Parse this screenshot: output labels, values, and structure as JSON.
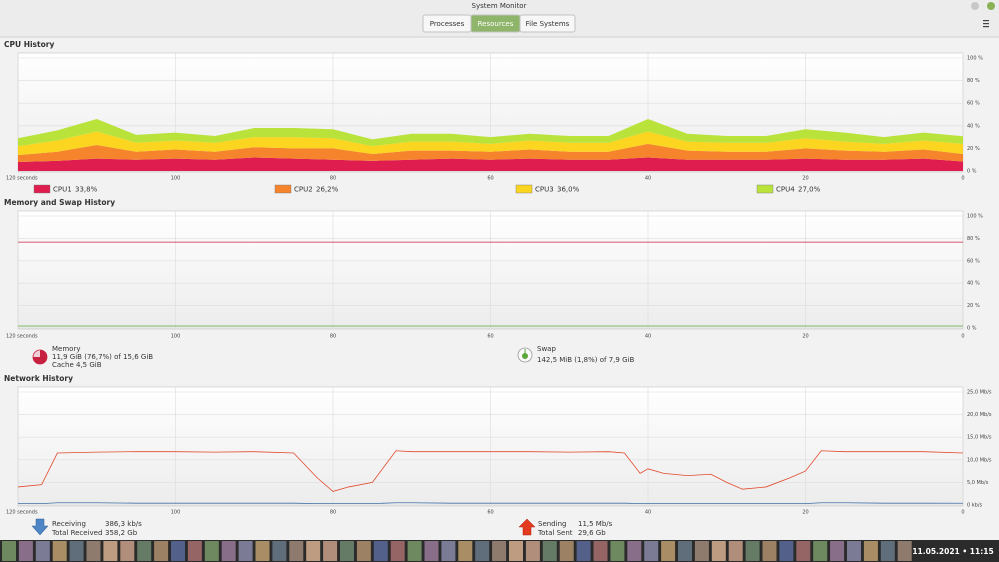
{
  "window": {
    "title": "System Monitor",
    "tabs": [
      "Processes",
      "Resources",
      "File Systems"
    ],
    "active_tab": 1
  },
  "cpu_history": {
    "heading": "CPU History",
    "type": "area",
    "stacked": true,
    "x": [
      120,
      115,
      110,
      105,
      100,
      95,
      90,
      85,
      80,
      75,
      70,
      65,
      60,
      55,
      50,
      45,
      40,
      35,
      30,
      25,
      20,
      15,
      10,
      5,
      0
    ],
    "xlim": [
      120,
      0
    ],
    "xticks": [
      {
        "value": 120,
        "label": "120 seconds"
      },
      100,
      80,
      60,
      40,
      20,
      0
    ],
    "ylim": [
      0,
      100
    ],
    "yticks": [
      {
        "value": 0,
        "label": "0 %"
      },
      {
        "value": 20,
        "label": "20 %"
      },
      {
        "value": 40,
        "label": "40 %"
      },
      {
        "value": 60,
        "label": "60 %"
      },
      {
        "value": 80,
        "label": "80 %"
      },
      {
        "value": 100,
        "label": "100 %"
      }
    ],
    "series": [
      {
        "name": "CPU1",
        "color": "#df1d4e",
        "legend_value": "33,8%",
        "values": [
          8,
          9,
          11,
          10,
          11,
          10,
          12,
          11,
          10,
          9,
          10,
          11,
          10,
          11,
          10,
          10,
          12,
          10,
          10,
          10,
          11,
          10,
          10,
          11,
          8.45
        ]
      },
      {
        "name": "CPU2",
        "color": "#f5842c",
        "legend_value": "26,2%",
        "values": [
          6,
          8,
          12,
          7,
          8,
          7,
          9,
          9,
          10,
          6,
          8,
          7,
          7,
          8,
          7,
          7,
          12,
          8,
          7,
          7,
          9,
          8,
          7,
          8,
          6.55
        ]
      },
      {
        "name": "CPU3",
        "color": "#fbd51f",
        "legend_value": "36,0%",
        "values": [
          8,
          10,
          12,
          8,
          8,
          8,
          9,
          10,
          9,
          7,
          8,
          8,
          7,
          8,
          8,
          8,
          11,
          8,
          8,
          8,
          9,
          8,
          7,
          8,
          9
        ]
      },
      {
        "name": "CPU4",
        "color": "#b9e33b",
        "legend_value": "27,0%",
        "values": [
          7,
          9,
          11,
          7,
          7,
          6,
          8,
          8,
          8,
          6,
          7,
          7,
          6,
          6,
          6,
          6,
          11,
          7,
          6,
          6,
          8,
          8,
          6,
          7,
          6.75
        ]
      }
    ]
  },
  "memory_history": {
    "heading": "Memory and Swap History",
    "type": "line",
    "x": [
      120,
      0
    ],
    "xlim": [
      120,
      0
    ],
    "xticks": [
      {
        "value": 120,
        "label": "120 seconds"
      },
      100,
      80,
      60,
      40,
      20,
      0
    ],
    "ylim": [
      0,
      100
    ],
    "yticks": [
      {
        "value": 0,
        "label": "0 %"
      },
      {
        "value": 20,
        "label": "20 %"
      },
      {
        "value": 40,
        "label": "40 %"
      },
      {
        "value": 60,
        "label": "60 %"
      },
      {
        "value": 80,
        "label": "80 %"
      },
      {
        "value": 100,
        "label": "100 %"
      }
    ],
    "series": [
      {
        "name": "Memory",
        "color": "#c8203f",
        "usage": "11,9 GiB (76,7%) of 15,6 GiB",
        "cache": "Cache 4,5 GiB",
        "values": [
          76.7,
          76.7
        ]
      },
      {
        "name": "Swap",
        "color": "#5aa83a",
        "usage": "142,5 MiB (1,8%) of 7,9 GiB",
        "values": [
          1.8,
          1.8
        ]
      }
    ]
  },
  "network_history": {
    "heading": "Network History",
    "type": "line",
    "x": [
      120,
      117,
      115,
      110,
      105,
      100,
      95,
      90,
      85,
      82,
      80,
      78,
      75,
      72,
      70,
      65,
      60,
      55,
      50,
      45,
      43,
      41,
      40,
      38,
      35,
      32,
      30,
      28,
      25,
      22,
      20,
      18,
      15,
      10,
      5,
      0
    ],
    "xlim": [
      120,
      0
    ],
    "xticks": [
      {
        "value": 120,
        "label": "120 seconds"
      },
      100,
      80,
      60,
      40,
      20,
      0
    ],
    "ylim": [
      0,
      25
    ],
    "yticks": [
      {
        "value": 0,
        "label": "0 kb/s"
      },
      {
        "value": 5,
        "label": "5,0 Mb/s"
      },
      {
        "value": 10,
        "label": "10,0 Mb/s"
      },
      {
        "value": 15,
        "label": "15,0 Mb/s"
      },
      {
        "value": 20,
        "label": "20,0 Mb/s"
      },
      {
        "value": 25,
        "label": "25,0 Mb/s"
      }
    ],
    "series": [
      {
        "name": "Receiving",
        "color": "#3e6fa6",
        "rate": "386,3 kb/s",
        "total_label": "Total Received",
        "total": "358,2 Gb",
        "values": [
          0.3,
          0.3,
          0.5,
          0.5,
          0.4,
          0.4,
          0.4,
          0.4,
          0.4,
          0.3,
          0.3,
          0.3,
          0.3,
          0.5,
          0.5,
          0.4,
          0.4,
          0.4,
          0.4,
          0.4,
          0.4,
          0.3,
          0.3,
          0.3,
          0.3,
          0.3,
          0.3,
          0.3,
          0.3,
          0.3,
          0.3,
          0.5,
          0.5,
          0.4,
          0.4,
          0.39
        ]
      },
      {
        "name": "Sending",
        "color": "#e2492b",
        "rate": "11,5 Mb/s",
        "total_label": "Total Sent",
        "total": "29,6 Gb",
        "values": [
          4,
          4.5,
          11.5,
          11.7,
          11.8,
          11.8,
          11.7,
          11.8,
          11.5,
          6,
          3,
          4,
          5,
          12,
          11.8,
          11.8,
          11.8,
          11.8,
          11.7,
          11.8,
          11.5,
          7,
          8,
          7,
          6.5,
          6.8,
          5,
          3.5,
          4,
          6,
          7.5,
          12,
          11.8,
          11.8,
          11.8,
          11.5
        ]
      }
    ]
  },
  "taskbar": {
    "clock": "11.05.2021 • 11:15"
  }
}
